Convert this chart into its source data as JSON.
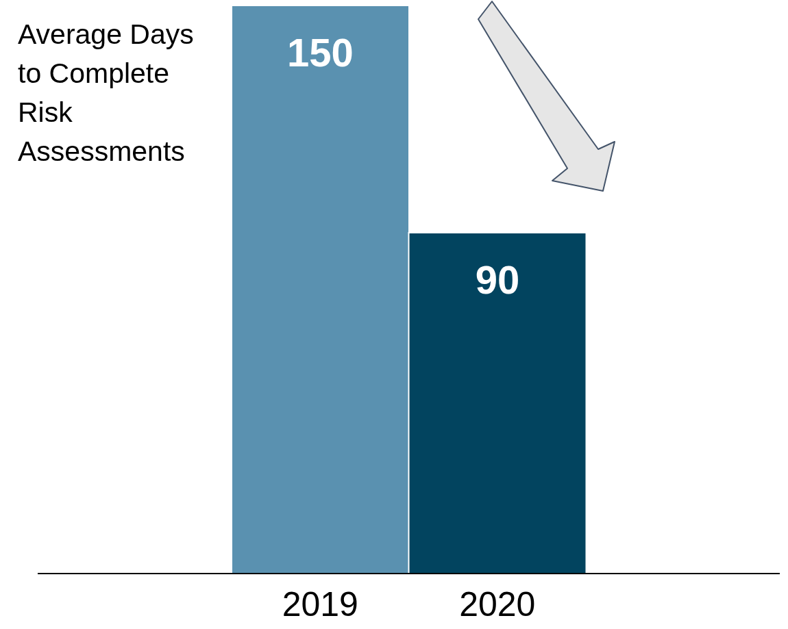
{
  "chart_data": {
    "type": "bar",
    "ylabel": "Average Days to Complete Risk Assessments",
    "categories": [
      "2019",
      "2020"
    ],
    "values": [
      150,
      90
    ],
    "colors": [
      "#5a91b0",
      "#02445f"
    ],
    "data_labels": true,
    "grid": false,
    "legend": false
  }
}
